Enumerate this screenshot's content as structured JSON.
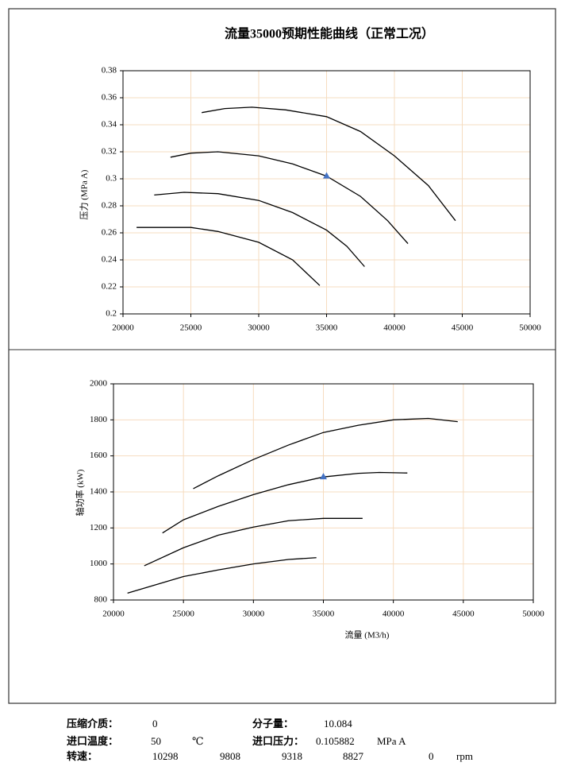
{
  "chart_data": [
    {
      "type": "line",
      "title": "流量35000预期性能曲线（正常工况）",
      "ylabel": "压力 (MPa A)",
      "xlim": [
        20000,
        50000
      ],
      "xticks": [
        20000,
        25000,
        30000,
        35000,
        40000,
        45000,
        50000
      ],
      "ylim": [
        0.2,
        0.38
      ],
      "yticks": [
        0.2,
        0.22,
        0.24,
        0.26,
        0.28,
        0.3,
        0.32,
        0.34,
        0.36,
        0.38
      ],
      "grid": true,
      "grid_color": "#f6dcc0",
      "series": [
        {
          "color": "#000000",
          "x": [
            25800,
            27500,
            29500,
            32000,
            35000,
            37500,
            40000,
            42500,
            44500
          ],
          "values": [
            0.349,
            0.352,
            0.353,
            0.351,
            0.346,
            0.335,
            0.317,
            0.295,
            0.269
          ]
        },
        {
          "color": "#000000",
          "x": [
            23500,
            25000,
            27000,
            30000,
            32500,
            35000,
            37500,
            39500,
            41000
          ],
          "values": [
            0.316,
            0.319,
            0.32,
            0.317,
            0.311,
            0.302,
            0.287,
            0.269,
            0.252
          ]
        },
        {
          "color": "#000000",
          "x": [
            22300,
            24500,
            27000,
            30000,
            32500,
            35000,
            36500,
            37800
          ],
          "values": [
            0.288,
            0.29,
            0.289,
            0.284,
            0.275,
            0.262,
            0.25,
            0.235
          ]
        },
        {
          "color": "#000000",
          "x": [
            21000,
            25000,
            27000,
            30000,
            32500,
            34500
          ],
          "values": [
            0.264,
            0.264,
            0.261,
            0.253,
            0.24,
            0.221
          ]
        }
      ],
      "marker": {
        "x": 35000,
        "y": 0.302,
        "color": "#4472c4"
      }
    },
    {
      "type": "line",
      "xlabel": "流量 (M3/h)",
      "ylabel": "轴功率 (kW)",
      "xlim": [
        20000,
        50000
      ],
      "xticks": [
        20000,
        25000,
        30000,
        35000,
        40000,
        45000,
        50000
      ],
      "ylim": [
        800,
        2000
      ],
      "yticks": [
        800,
        1000,
        1200,
        1400,
        1600,
        1800,
        2000
      ],
      "grid": true,
      "grid_color": "#f6dcc0",
      "series": [
        {
          "color": "#000000",
          "x": [
            25700,
            27500,
            30000,
            32500,
            35000,
            37500,
            40000,
            42500,
            44600
          ],
          "values": [
            1418,
            1490,
            1580,
            1660,
            1730,
            1770,
            1800,
            1808,
            1790
          ]
        },
        {
          "color": "#000000",
          "x": [
            23500,
            25000,
            27500,
            30000,
            32500,
            35000,
            37500,
            39000,
            41000
          ],
          "values": [
            1172,
            1245,
            1320,
            1385,
            1440,
            1483,
            1503,
            1508,
            1505
          ]
        },
        {
          "color": "#000000",
          "x": [
            22200,
            25000,
            27500,
            30000,
            32500,
            35000,
            37800
          ],
          "values": [
            990,
            1090,
            1160,
            1205,
            1240,
            1253,
            1253
          ]
        },
        {
          "color": "#000000",
          "x": [
            21000,
            25000,
            27500,
            30000,
            32500,
            34500
          ],
          "values": [
            838,
            930,
            967,
            1000,
            1025,
            1035
          ]
        }
      ],
      "marker": {
        "x": 35000,
        "y": 1483,
        "color": "#4472c4"
      }
    }
  ],
  "footer": {
    "rows": [
      [
        "压缩介质：",
        "0",
        "分子量：",
        "10.084"
      ],
      [
        "进口温度：",
        "50",
        "℃",
        "进口压力：",
        "0.105882",
        "MPa A"
      ],
      [
        "转速：",
        "10298",
        "9808",
        "9318",
        "8827",
        "0",
        "rpm"
      ]
    ]
  }
}
